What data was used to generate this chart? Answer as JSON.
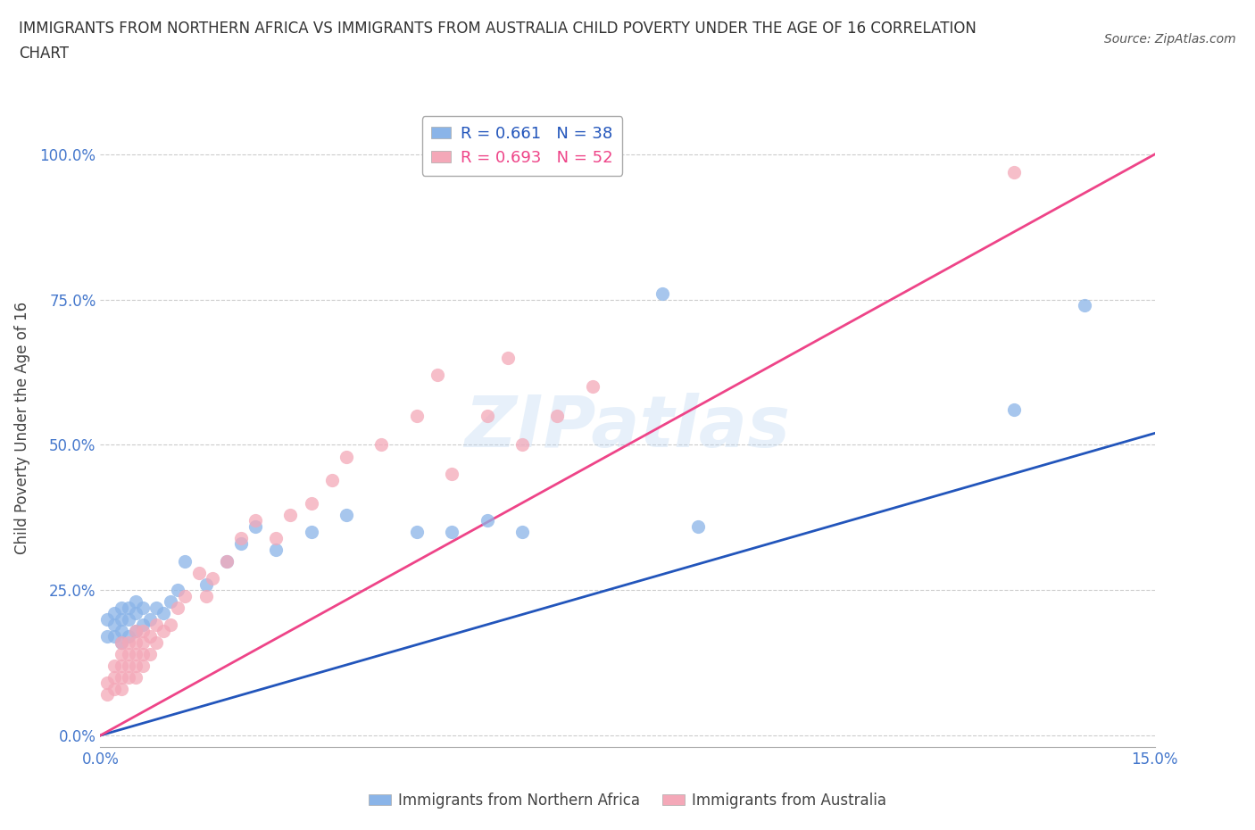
{
  "title_line1": "IMMIGRANTS FROM NORTHERN AFRICA VS IMMIGRANTS FROM AUSTRALIA CHILD POVERTY UNDER THE AGE OF 16 CORRELATION",
  "title_line2": "CHART",
  "source": "Source: ZipAtlas.com",
  "ylabel": "Child Poverty Under the Age of 16",
  "xlim": [
    0.0,
    0.15
  ],
  "ylim": [
    -0.02,
    1.08
  ],
  "yticks": [
    0.0,
    0.25,
    0.5,
    0.75,
    1.0
  ],
  "ytick_labels": [
    "0.0%",
    "25.0%",
    "50.0%",
    "75.0%",
    "100.0%"
  ],
  "xticks": [
    0.0,
    0.15
  ],
  "xtick_labels": [
    "0.0%",
    "15.0%"
  ],
  "legend_blue_r": "0.661",
  "legend_blue_n": "38",
  "legend_pink_r": "0.693",
  "legend_pink_n": "52",
  "blue_color": "#8ab4e8",
  "pink_color": "#f4a8b8",
  "blue_line_color": "#2255bb",
  "pink_line_color": "#ee4488",
  "tick_color": "#4477cc",
  "watermark": "ZIPatlas",
  "blue_line_x": [
    0.0,
    0.15
  ],
  "blue_line_y": [
    0.0,
    0.52
  ],
  "pink_line_x": [
    0.0,
    0.15
  ],
  "pink_line_y": [
    0.0,
    1.0
  ],
  "blue_scatter_x": [
    0.001,
    0.001,
    0.002,
    0.002,
    0.002,
    0.003,
    0.003,
    0.003,
    0.003,
    0.004,
    0.004,
    0.004,
    0.005,
    0.005,
    0.005,
    0.006,
    0.006,
    0.007,
    0.008,
    0.009,
    0.01,
    0.011,
    0.012,
    0.015,
    0.018,
    0.02,
    0.022,
    0.025,
    0.03,
    0.035,
    0.045,
    0.05,
    0.055,
    0.06,
    0.08,
    0.085,
    0.13,
    0.14
  ],
  "blue_scatter_y": [
    0.17,
    0.2,
    0.17,
    0.19,
    0.21,
    0.16,
    0.18,
    0.2,
    0.22,
    0.17,
    0.2,
    0.22,
    0.18,
    0.21,
    0.23,
    0.19,
    0.22,
    0.2,
    0.22,
    0.21,
    0.23,
    0.25,
    0.3,
    0.26,
    0.3,
    0.33,
    0.36,
    0.32,
    0.35,
    0.38,
    0.35,
    0.35,
    0.37,
    0.35,
    0.76,
    0.36,
    0.56,
    0.74
  ],
  "pink_scatter_x": [
    0.001,
    0.001,
    0.002,
    0.002,
    0.002,
    0.003,
    0.003,
    0.003,
    0.003,
    0.003,
    0.004,
    0.004,
    0.004,
    0.004,
    0.005,
    0.005,
    0.005,
    0.005,
    0.005,
    0.006,
    0.006,
    0.006,
    0.006,
    0.007,
    0.007,
    0.008,
    0.008,
    0.009,
    0.01,
    0.011,
    0.012,
    0.014,
    0.015,
    0.016,
    0.018,
    0.02,
    0.022,
    0.025,
    0.027,
    0.03,
    0.033,
    0.035,
    0.04,
    0.045,
    0.048,
    0.05,
    0.055,
    0.058,
    0.06,
    0.065,
    0.07,
    0.13
  ],
  "pink_scatter_y": [
    0.07,
    0.09,
    0.08,
    0.1,
    0.12,
    0.08,
    0.1,
    0.12,
    0.14,
    0.16,
    0.1,
    0.12,
    0.14,
    0.16,
    0.1,
    0.12,
    0.14,
    0.16,
    0.18,
    0.12,
    0.14,
    0.16,
    0.18,
    0.14,
    0.17,
    0.16,
    0.19,
    0.18,
    0.19,
    0.22,
    0.24,
    0.28,
    0.24,
    0.27,
    0.3,
    0.34,
    0.37,
    0.34,
    0.38,
    0.4,
    0.44,
    0.48,
    0.5,
    0.55,
    0.62,
    0.45,
    0.55,
    0.65,
    0.5,
    0.55,
    0.6,
    0.97
  ]
}
